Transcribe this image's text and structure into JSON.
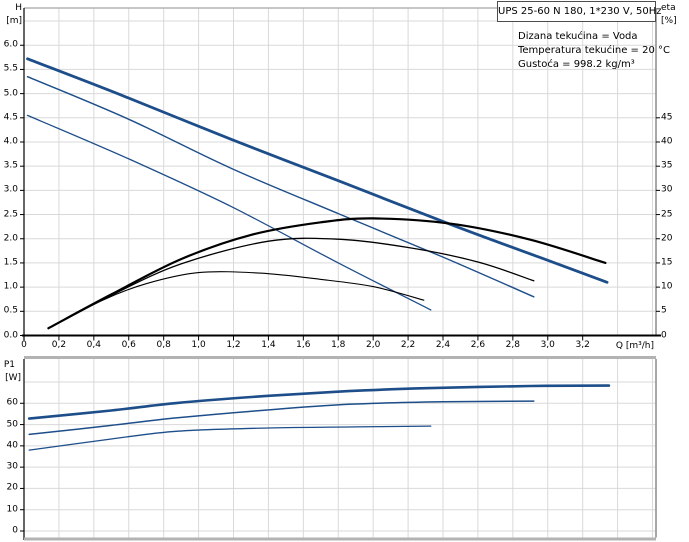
{
  "header": {
    "title": "UPS 25-60 N 180, 1*230 V, 50Hz",
    "info_lines": [
      "Dizana tekućina = Voda",
      "Temperatura tekućine = 20 °C",
      "Gustoća = 998.2 kg/m³"
    ]
  },
  "colors": {
    "curve_blue": "#1d4e8a",
    "curve_black": "#000000",
    "grid": "#d9d9d9",
    "frame": "#b3b3b3",
    "frame_dark": "#8c8c8c",
    "axis": "#000000"
  },
  "chart_data": [
    {
      "name": "head-efficiency-chart",
      "type": "line",
      "xlabel": "Q [m³/h]",
      "ylabel_left": [
        "H",
        "[m]"
      ],
      "ylabel_right": [
        "eta",
        "[%]"
      ],
      "xlim": [
        0,
        3.62
      ],
      "ylim_left": [
        0,
        6.77
      ],
      "ylim_right": [
        0,
        67.7
      ],
      "grid": true,
      "x_ticks": {
        "values": [
          0,
          0.2,
          0.4,
          0.6,
          0.8,
          1.0,
          1.2,
          1.4,
          1.6,
          1.8,
          2.0,
          2.2,
          2.4,
          2.6,
          2.8,
          3.0,
          3.2
        ],
        "labels": [
          "0",
          "0,2",
          "0,4",
          "0,6",
          "0,8",
          "1,0",
          "1,2",
          "1,4",
          "1,6",
          "1,8",
          "2,0",
          "2,2",
          "2,4",
          "2,6",
          "2,8",
          "3,0",
          "3,2"
        ]
      },
      "y_ticks_left": {
        "values": [
          0,
          0.5,
          1.0,
          1.5,
          2.0,
          2.5,
          3.0,
          3.5,
          4.0,
          4.5,
          5.0,
          5.5,
          6.0
        ],
        "labels": [
          "0.0",
          "0.5",
          "1.0",
          "1.5",
          "2.0",
          "2.5",
          "3.0",
          "3.5",
          "4.0",
          "4.5",
          "5.0",
          "5.5",
          "6.0"
        ]
      },
      "y_ticks_right": {
        "values": [
          0,
          5,
          10,
          15,
          20,
          25,
          30,
          35,
          40,
          45
        ],
        "labels": [
          "0",
          "5",
          "10",
          "15",
          "20",
          "25",
          "30",
          "35",
          "40",
          "45"
        ]
      },
      "series": [
        {
          "name": "head-speed-3",
          "axis": "left",
          "color": "blue",
          "width": 2.8,
          "points": [
            [
              0.02,
              5.72
            ],
            [
              0.55,
              4.98
            ],
            [
              1.19,
              4.05
            ],
            [
              1.8,
              3.2
            ],
            [
              2.44,
              2.3
            ],
            [
              2.95,
              1.62
            ],
            [
              3.34,
              1.1
            ]
          ]
        },
        {
          "name": "head-speed-2",
          "axis": "left",
          "color": "blue",
          "width": 1.4,
          "points": [
            [
              0.02,
              5.35
            ],
            [
              0.6,
              4.47
            ],
            [
              1.19,
              3.45
            ],
            [
              1.8,
              2.52
            ],
            [
              2.4,
              1.62
            ],
            [
              2.92,
              0.8
            ]
          ]
        },
        {
          "name": "head-speed-1",
          "axis": "left",
          "color": "blue",
          "width": 1.3,
          "points": [
            [
              0.02,
              4.55
            ],
            [
              0.6,
              3.65
            ],
            [
              1.19,
              2.66
            ],
            [
              1.8,
              1.5
            ],
            [
              2.33,
              0.53
            ]
          ]
        },
        {
          "name": "eta-speed-3",
          "axis": "right",
          "color": "black",
          "width": 2.2,
          "points": [
            [
              0.14,
              1.5
            ],
            [
              0.5,
              8.5
            ],
            [
              0.9,
              15.8
            ],
            [
              1.3,
              20.8
            ],
            [
              1.7,
              23.4
            ],
            [
              2.0,
              24.2
            ],
            [
              2.45,
              23.1
            ],
            [
              2.9,
              19.8
            ],
            [
              3.33,
              15.0
            ]
          ]
        },
        {
          "name": "eta-speed-2",
          "axis": "right",
          "color": "black",
          "width": 1.3,
          "points": [
            [
              0.14,
              1.5
            ],
            [
              0.5,
              8.3
            ],
            [
              0.9,
              14.8
            ],
            [
              1.4,
              19.5
            ],
            [
              1.8,
              19.9
            ],
            [
              2.2,
              18.2
            ],
            [
              2.6,
              15.2
            ],
            [
              2.92,
              11.3
            ]
          ]
        },
        {
          "name": "eta-speed-1",
          "axis": "right",
          "color": "black",
          "width": 1.1,
          "points": [
            [
              0.14,
              1.4
            ],
            [
              0.45,
              7.3
            ],
            [
              0.7,
              10.7
            ],
            [
              1.0,
              13.0
            ],
            [
              1.35,
              12.9
            ],
            [
              1.7,
              11.6
            ],
            [
              2.0,
              10.1
            ],
            [
              2.29,
              7.3
            ]
          ]
        }
      ]
    },
    {
      "name": "power-chart",
      "type": "line",
      "ylabel": [
        "P1",
        "[W]"
      ],
      "xlim": [
        0,
        3.62
      ],
      "ylim": [
        0,
        80.8
      ],
      "grid": true,
      "y_ticks": {
        "values": [
          0,
          10,
          20,
          30,
          40,
          50,
          60
        ],
        "labels": [
          "0",
          "10",
          "20",
          "30",
          "40",
          "50",
          "60"
        ]
      },
      "series": [
        {
          "name": "p1-speed-3",
          "color": "blue",
          "width": 2.6,
          "points": [
            [
              0.03,
              52.8
            ],
            [
              0.5,
              56.6
            ],
            [
              0.88,
              60.2
            ],
            [
              1.4,
              63.5
            ],
            [
              1.86,
              65.7
            ],
            [
              2.3,
              67.1
            ],
            [
              2.9,
              68.1
            ],
            [
              3.35,
              68.3
            ]
          ]
        },
        {
          "name": "p1-speed-2",
          "color": "blue",
          "width": 1.5,
          "points": [
            [
              0.03,
              45.4
            ],
            [
              0.5,
              49.6
            ],
            [
              0.88,
              53.2
            ],
            [
              1.4,
              56.9
            ],
            [
              1.86,
              59.5
            ],
            [
              2.4,
              60.7
            ],
            [
              2.92,
              61.0
            ]
          ]
        },
        {
          "name": "p1-speed-1",
          "color": "blue",
          "width": 1.3,
          "points": [
            [
              0.03,
              38.0
            ],
            [
              0.5,
              43.2
            ],
            [
              0.88,
              46.9
            ],
            [
              1.4,
              48.4
            ],
            [
              1.9,
              48.9
            ],
            [
              2.33,
              49.3
            ]
          ]
        }
      ]
    }
  ]
}
